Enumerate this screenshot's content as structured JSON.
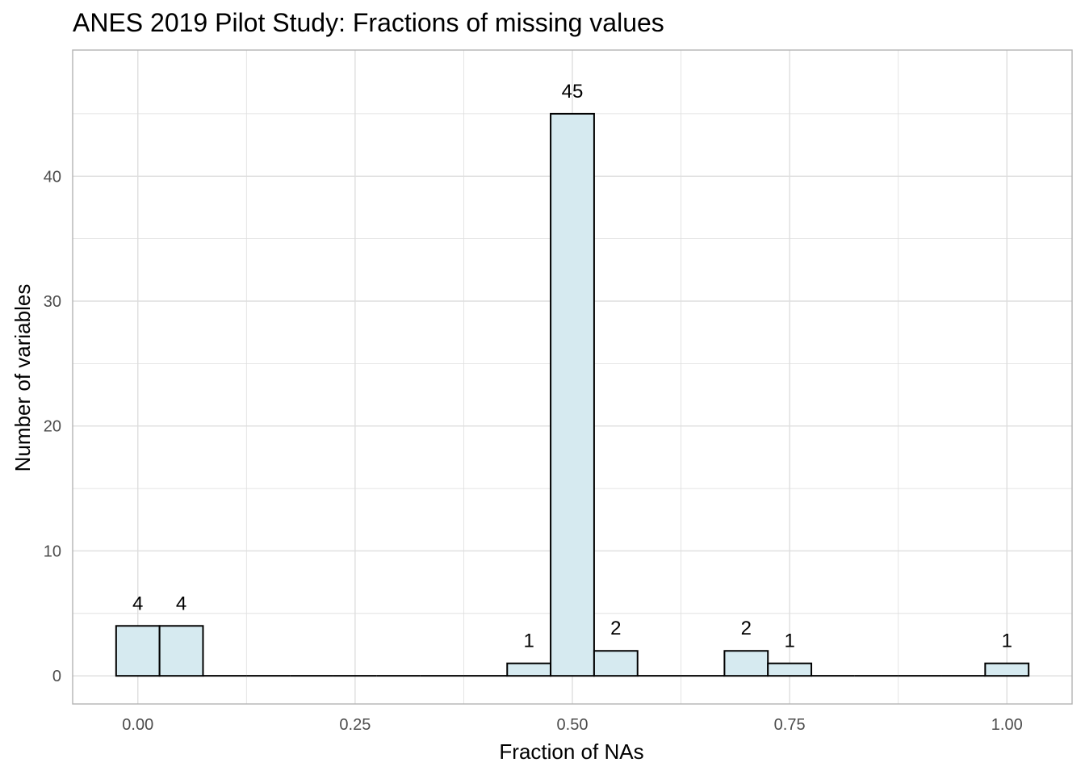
{
  "chart_data": {
    "type": "bar",
    "title": "ANES 2019 Pilot Study: Fractions of missing values",
    "xlabel": "Fraction of NAs",
    "ylabel": "Number of variables",
    "xlim": [
      -0.075,
      1.075
    ],
    "ylim": [
      -2.25,
      50.1
    ],
    "x_ticks": [
      0.0,
      0.25,
      0.5,
      0.75,
      1.0
    ],
    "x_tick_labels": [
      "0.00",
      "0.25",
      "0.50",
      "0.75",
      "1.00"
    ],
    "y_ticks": [
      0,
      10,
      20,
      30,
      40
    ],
    "y_tick_labels": [
      "0",
      "10",
      "20",
      "30",
      "40"
    ],
    "bin_width": 0.05,
    "bins": [
      {
        "x": 0.0,
        "count": 4,
        "label": "4"
      },
      {
        "x": 0.05,
        "count": 4,
        "label": "4"
      },
      {
        "x": 0.1,
        "count": 0,
        "label": ""
      },
      {
        "x": 0.15,
        "count": 0,
        "label": ""
      },
      {
        "x": 0.2,
        "count": 0,
        "label": ""
      },
      {
        "x": 0.25,
        "count": 0,
        "label": ""
      },
      {
        "x": 0.3,
        "count": 0,
        "label": ""
      },
      {
        "x": 0.35,
        "count": 0,
        "label": ""
      },
      {
        "x": 0.4,
        "count": 0,
        "label": ""
      },
      {
        "x": 0.45,
        "count": 1,
        "label": "1"
      },
      {
        "x": 0.5,
        "count": 45,
        "label": "45"
      },
      {
        "x": 0.55,
        "count": 2,
        "label": "2"
      },
      {
        "x": 0.6,
        "count": 0,
        "label": ""
      },
      {
        "x": 0.65,
        "count": 0,
        "label": ""
      },
      {
        "x": 0.7,
        "count": 2,
        "label": "2"
      },
      {
        "x": 0.75,
        "count": 1,
        "label": "1"
      },
      {
        "x": 0.8,
        "count": 0,
        "label": ""
      },
      {
        "x": 0.85,
        "count": 0,
        "label": ""
      },
      {
        "x": 0.9,
        "count": 0,
        "label": ""
      },
      {
        "x": 0.95,
        "count": 0,
        "label": ""
      },
      {
        "x": 1.0,
        "count": 1,
        "label": "1"
      }
    ],
    "grid": true,
    "colors": {
      "bar_fill": "#d6eaf0",
      "bar_stroke": "#000000",
      "grid": "#dedede",
      "panel_border": "#b3b3b3"
    }
  }
}
